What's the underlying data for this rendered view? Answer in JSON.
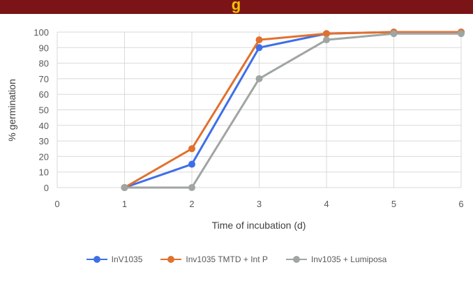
{
  "banner": {
    "title": "g",
    "bg_color": "#7b1416",
    "text_color": "#f2c200"
  },
  "chart_data": {
    "type": "line",
    "title": "",
    "xlabel": "Time of incubation (d)",
    "ylabel": "% germination",
    "x_ticks": [
      0,
      1,
      2,
      3,
      4,
      5,
      6
    ],
    "y_ticks": [
      0,
      10,
      20,
      30,
      40,
      50,
      60,
      70,
      80,
      90,
      100
    ],
    "xlim": [
      0,
      6
    ],
    "ylim": [
      0,
      100
    ],
    "grid": true,
    "legend_position": "bottom",
    "series": [
      {
        "name": "InV1035",
        "color": "#3e6fe8",
        "x": [
          1,
          2,
          3,
          4,
          5,
          6
        ],
        "y": [
          0,
          15,
          90,
          99,
          100,
          100
        ]
      },
      {
        "name": "Inv1035 TMTD + Int P",
        "color": "#e2702d",
        "x": [
          1,
          2,
          3,
          4,
          5,
          6
        ],
        "y": [
          0,
          25,
          95,
          99,
          100,
          100
        ]
      },
      {
        "name": "Inv1035 + Lumiposa",
        "color": "#9fa5a3",
        "x": [
          1,
          2,
          3,
          4,
          5,
          6
        ],
        "y": [
          0,
          0,
          70,
          95,
          99,
          99
        ]
      }
    ]
  }
}
